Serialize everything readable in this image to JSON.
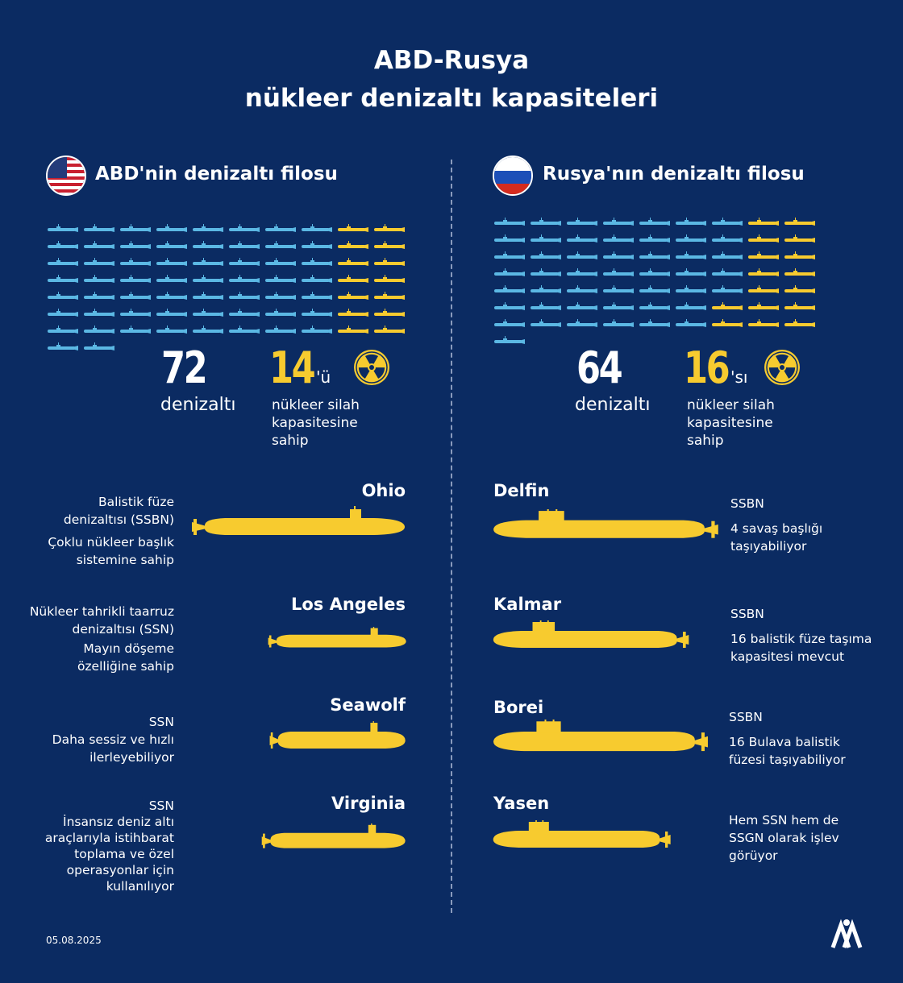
{
  "title": {
    "line1": "ABD-Rusya",
    "line2": "nükleer denizaltı kapasiteleri"
  },
  "colors": {
    "background": "#0b2b62",
    "conventional": "#5bb8e4",
    "nuclear": "#f7cb2f"
  },
  "chart_data": [
    {
      "type": "pictogram",
      "title": "ABD'nin denizaltı filosu",
      "total": 72,
      "nuclear_capable": 14,
      "columns": 10
    },
    {
      "type": "pictogram",
      "title": "Rusya'nın denizaltı filosu",
      "total": 64,
      "nuclear_capable": 16,
      "columns": 9
    }
  ],
  "usa": {
    "header": "ABD'nin denizaltı filosu",
    "flag": "usa-flag-icon",
    "total": "72",
    "total_label": "denizaltı",
    "nuclear": "14",
    "nuclear_suffix": "'ü",
    "nuclear_label": [
      "nükleer silah",
      "kapasitesine",
      "sahip"
    ],
    "icon": "radiation-icon",
    "subs": [
      {
        "name": "Ohio",
        "desc": [
          "Balistik füze",
          "denizaltısı (SSBN)",
          "Çoklu nükleer başlık",
          "sistemine sahip"
        ]
      },
      {
        "name": "Los Angeles",
        "desc": [
          "Nükleer tahrikli taarruz",
          "denizaltısı (SSN)",
          "Mayın döşeme",
          "özelliğine sahip"
        ]
      },
      {
        "name": "Seawolf",
        "desc": [
          "SSN",
          "Daha sessiz ve hızlı",
          "ilerleyebiliyor"
        ]
      },
      {
        "name": "Virginia",
        "desc": [
          "SSN",
          "İnsansız deniz altı",
          "araçlarıyla istihbarat",
          "toplama ve özel",
          "operasyonlar için",
          "kullanılıyor"
        ]
      }
    ]
  },
  "russia": {
    "header": "Rusya'nın denizaltı filosu",
    "flag": "russia-flag-icon",
    "total": "64",
    "total_label": "denizaltı",
    "nuclear": "16",
    "nuclear_suffix": "'sı",
    "nuclear_label": [
      "nükleer silah",
      "kapasitesine",
      "sahip"
    ],
    "icon": "radiation-icon",
    "subs": [
      {
        "name": "Delfin",
        "desc": [
          "SSBN",
          "4 savaş başlığı",
          "taşıyabiliyor"
        ]
      },
      {
        "name": "Kalmar",
        "desc": [
          "SSBN",
          "16 balistik füze taşıma",
          "kapasitesi mevcut"
        ]
      },
      {
        "name": "Borei",
        "desc": [
          "SSBN",
          "16 Bulava balistik",
          "füzesi taşıyabiliyor"
        ]
      },
      {
        "name": "Yasen",
        "desc": [
          "Hem SSN hem de",
          "SSGN olarak işlev",
          "görüyor"
        ]
      }
    ]
  },
  "footer": {
    "date": "05.08.2025",
    "logo": "AA"
  }
}
